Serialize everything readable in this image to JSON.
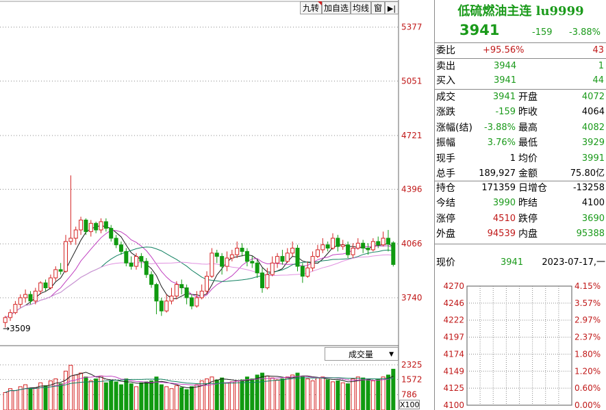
{
  "toolbar": {
    "items": [
      "九转",
      "加自选",
      "均线",
      "窗"
    ]
  },
  "price_axis": [
    "5377",
    "5051",
    "4721",
    "4396",
    "4066",
    "3740"
  ],
  "low_marker": "3509",
  "volume": {
    "label": "成交量",
    "axis": [
      "2325",
      "1572",
      "786"
    ],
    "multiplier": "X100"
  },
  "quote": {
    "title": "低硫燃油主连 lu9999",
    "price": "3941",
    "change": "-159",
    "change_pct": "-3.88%",
    "weibi_label": "委比",
    "weibi_value": "+95.56%",
    "weibi_count": "43",
    "sell_label": "卖出",
    "sell_price": "3944",
    "sell_qty": "1",
    "buy_label": "买入",
    "buy_price": "3941",
    "buy_qty": "44",
    "stats": [
      {
        "l1": "成交",
        "v1": "3941",
        "l2": "开盘",
        "v2": "4072",
        "c1": "green",
        "c2": "green"
      },
      {
        "l1": "涨跌",
        "v1": "-159",
        "l2": "昨收",
        "v2": "4064",
        "c1": "green",
        "c2": "black"
      },
      {
        "l1": "涨幅(结)",
        "v1": "-3.88%",
        "l2": "最高",
        "v2": "4082",
        "c1": "green",
        "c2": "green"
      },
      {
        "l1": "振幅",
        "v1": "3.76%",
        "l2": "最低",
        "v2": "3929",
        "c1": "green",
        "c2": "green"
      },
      {
        "l1": "现手",
        "v1": "1",
        "l2": "均价",
        "v2": "3991",
        "c1": "black",
        "c2": "green"
      },
      {
        "l1": "总手",
        "v1": "189,927",
        "l2": "金额",
        "v2": "75.80亿",
        "c1": "black",
        "c2": "black"
      }
    ],
    "stats2": [
      {
        "l1": "持仓",
        "v1": "171359",
        "l2": "日增仓",
        "v2": "-13258",
        "c1": "black",
        "c2": "black"
      },
      {
        "l1": "今结",
        "v1": "3990",
        "l2": "昨结",
        "v2": "4100",
        "c1": "green",
        "c2": "black"
      },
      {
        "l1": "涨停",
        "v1": "4510",
        "l2": "跌停",
        "v2": "3690",
        "c1": "red",
        "c2": "green"
      },
      {
        "l1": "外盘",
        "v1": "94539",
        "l2": "内盘",
        "v2": "95388",
        "c1": "red",
        "c2": "green"
      }
    ],
    "now_label": "现价",
    "now_price": "3941",
    "date": "2023-07-17,一"
  },
  "mini_chart": {
    "left_axis": [
      "4270",
      "4246",
      "4222",
      "4197",
      "4174",
      "4149",
      "4125",
      "4100"
    ],
    "right_axis": [
      "4.15%",
      "3.57%",
      "2.97%",
      "2.37%",
      "1.80%",
      "1.20%",
      "0.60%",
      "0.00%"
    ]
  },
  "colors": {
    "up": "#d42020",
    "down": "#109a10",
    "ma_short": "#1a1a1a",
    "ma_mid": "#c040c0",
    "ma_long": "#108060",
    "ma_pink": "#e090e0"
  },
  "chart_data": {
    "type": "candlestick",
    "candles": [
      [
        3590,
        3620,
        3560,
        3630
      ],
      [
        3620,
        3650,
        3600,
        3670
      ],
      [
        3650,
        3700,
        3640,
        3720
      ],
      [
        3700,
        3740,
        3680,
        3760
      ],
      [
        3740,
        3760,
        3710,
        3790
      ],
      [
        3760,
        3720,
        3700,
        3780
      ],
      [
        3720,
        3780,
        3700,
        3800
      ],
      [
        3780,
        3830,
        3760,
        3840
      ],
      [
        3830,
        3800,
        3780,
        3850
      ],
      [
        3800,
        3860,
        3790,
        3880
      ],
      [
        3860,
        3910,
        3840,
        3930
      ],
      [
        3910,
        3900,
        3880,
        3950
      ],
      [
        3900,
        4080,
        3890,
        4120
      ],
      [
        4080,
        4100,
        4060,
        4480
      ],
      [
        4100,
        4150,
        4060,
        4170
      ],
      [
        4150,
        4210,
        4120,
        4230
      ],
      [
        4210,
        4140,
        4120,
        4220
      ],
      [
        4140,
        4190,
        4110,
        4210
      ],
      [
        4190,
        4150,
        4130,
        4200
      ],
      [
        4150,
        4200,
        4130,
        4220
      ],
      [
        4200,
        4160,
        4140,
        4220
      ],
      [
        4160,
        4100,
        4080,
        4180
      ],
      [
        4100,
        4060,
        4040,
        4120
      ],
      [
        4060,
        4020,
        4000,
        4080
      ],
      [
        4020,
        3950,
        3930,
        4040
      ],
      [
        3950,
        3930,
        3910,
        3990
      ],
      [
        3930,
        3990,
        3910,
        4010
      ],
      [
        3990,
        3960,
        3920,
        4010
      ],
      [
        3960,
        3880,
        3860,
        3980
      ],
      [
        3880,
        3820,
        3800,
        3900
      ],
      [
        3820,
        3720,
        3640,
        3830
      ],
      [
        3720,
        3660,
        3630,
        3740
      ],
      [
        3660,
        3720,
        3650,
        3760
      ],
      [
        3720,
        3750,
        3700,
        3800
      ],
      [
        3750,
        3820,
        3730,
        3840
      ],
      [
        3820,
        3800,
        3760,
        3850
      ],
      [
        3800,
        3740,
        3700,
        3820
      ],
      [
        3740,
        3690,
        3670,
        3760
      ],
      [
        3690,
        3740,
        3680,
        3780
      ],
      [
        3740,
        3780,
        3730,
        3820
      ],
      [
        3780,
        3870,
        3760,
        3900
      ],
      [
        3870,
        4010,
        3860,
        4040
      ],
      [
        4010,
        3990,
        3950,
        4030
      ],
      [
        3990,
        3930,
        3880,
        4010
      ],
      [
        3930,
        3980,
        3900,
        4020
      ],
      [
        3980,
        4000,
        3960,
        4030
      ],
      [
        4000,
        4040,
        3980,
        4080
      ],
      [
        4040,
        4020,
        3990,
        4070
      ],
      [
        4020,
        3960,
        3930,
        4040
      ],
      [
        3960,
        3950,
        3920,
        3990
      ],
      [
        3950,
        3890,
        3860,
        3970
      ],
      [
        3890,
        3800,
        3770,
        3920
      ],
      [
        3800,
        3880,
        3790,
        3920
      ],
      [
        3880,
        3950,
        3870,
        3990
      ],
      [
        3950,
        3990,
        3920,
        4010
      ],
      [
        3990,
        3960,
        3940,
        4030
      ],
      [
        3960,
        4010,
        3950,
        4040
      ],
      [
        4010,
        4040,
        3990,
        4080
      ],
      [
        4040,
        3930,
        3900,
        4060
      ],
      [
        3930,
        3870,
        3830,
        3950
      ],
      [
        3870,
        3920,
        3860,
        3960
      ],
      [
        3920,
        3990,
        3900,
        4020
      ],
      [
        3990,
        4030,
        3980,
        4060
      ],
      [
        4030,
        4060,
        4010,
        4100
      ],
      [
        4060,
        4040,
        4020,
        4080
      ],
      [
        4040,
        4100,
        4030,
        4130
      ],
      [
        4100,
        4050,
        4020,
        4120
      ],
      [
        4050,
        4060,
        4030,
        4090
      ],
      [
        4060,
        4000,
        3980,
        4080
      ],
      [
        4000,
        4040,
        3980,
        4070
      ],
      [
        4040,
        4070,
        4030,
        4100
      ],
      [
        4070,
        4040,
        4010,
        4090
      ],
      [
        4040,
        4030,
        4000,
        4070
      ],
      [
        4030,
        4080,
        4020,
        4100
      ],
      [
        4080,
        4060,
        4040,
        4110
      ],
      [
        4060,
        4100,
        4050,
        4140
      ],
      [
        4100,
        4064,
        4020,
        4150
      ],
      [
        4072,
        3941,
        3929,
        4082
      ]
    ],
    "volumes": [
      900,
      1100,
      1000,
      1200,
      1300,
      1100,
      1150,
      1400,
      1250,
      1500,
      1600,
      1350,
      2000,
      2300,
      1800,
      1900,
      1700,
      1500,
      1600,
      1750,
      1400,
      1500,
      1450,
      1300,
      1600,
      1350,
      1200,
      1400,
      1450,
      1500,
      1700,
      1300,
      1200,
      1100,
      1250,
      1150,
      1050,
      1200,
      1300,
      1500,
      1600,
      1700,
      1550,
      1650,
      1400,
      1450,
      1500,
      1550,
      1700,
      1600,
      1800,
      1900,
      1750,
      1650,
      1550,
      1600,
      1700,
      1800,
      1900,
      1750,
      1600,
      1500,
      1650,
      1700,
      1550,
      1450,
      1500,
      1400,
      1350,
      1600,
      1700,
      1650,
      1550,
      1500,
      1600,
      1700,
      1800,
      2100
    ]
  }
}
